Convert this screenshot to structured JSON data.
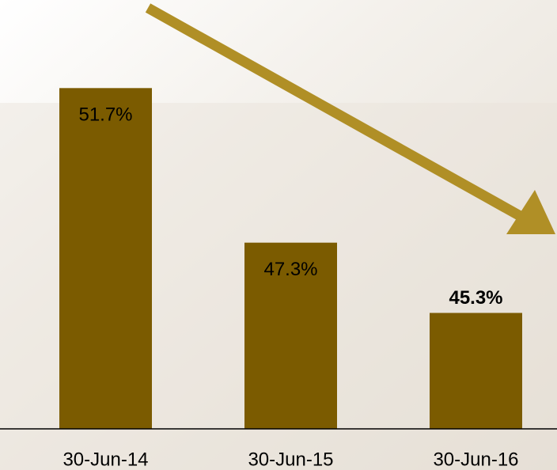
{
  "chart_data": {
    "type": "bar",
    "categories": [
      "30-Jun-14",
      "30-Jun-15",
      "30-Jun-16"
    ],
    "values": [
      51.7,
      47.3,
      45.3
    ],
    "value_labels": [
      "51.7%",
      "47.3%",
      "45.3%"
    ],
    "color": "#7b5b00",
    "ylim": [
      42,
      52
    ]
  }
}
